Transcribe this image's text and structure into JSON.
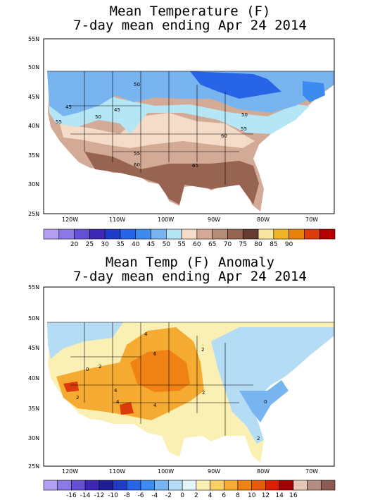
{
  "panels": [
    {
      "title_line1": "Mean Temperature (F)",
      "title_line2": "7-day mean ending Apr 24 2014",
      "lat_labels": [
        "55N",
        "50N",
        "45N",
        "40N",
        "35N",
        "30N",
        "25N"
      ],
      "lon_labels": [
        "120W",
        "110W",
        "100W",
        "90W",
        "80W",
        "70W"
      ],
      "contour_labels": [
        "50",
        "45",
        "45",
        "50",
        "55",
        "50",
        "55",
        "60",
        "55",
        "60",
        "65"
      ],
      "colorbar": {
        "colors": [
          "#b4a0f0",
          "#8c78e6",
          "#6450d2",
          "#3c28b4",
          "#1e3cc8",
          "#2864e6",
          "#3c8cf0",
          "#78b4f0",
          "#b4e6f5",
          "#f5dcc8",
          "#d2aa96",
          "#b48c78",
          "#966450",
          "#643c32",
          "#fae6a0",
          "#f0b428",
          "#e6820a",
          "#dc3c0a",
          "#b40000"
        ],
        "labels": [
          "20",
          "25",
          "30",
          "35",
          "40",
          "45",
          "50",
          "55",
          "60",
          "65",
          "70",
          "75",
          "80",
          "85",
          "90"
        ]
      }
    },
    {
      "title_line1": "Mean Temp (F) Anomaly",
      "title_line2": "7-day mean ending Apr 24 2014",
      "lat_labels": [
        "55N",
        "50N",
        "45N",
        "40N",
        "35N",
        "30N",
        "25N"
      ],
      "lon_labels": [
        "120W",
        "110W",
        "100W",
        "90W",
        "80W",
        "70W"
      ],
      "contour_labels": [
        "4",
        "6",
        "2",
        "2",
        "0",
        "2",
        "4",
        "2",
        "4",
        "4",
        "0",
        "2"
      ],
      "colorbar": {
        "colors": [
          "#b4a0f0",
          "#8c78e6",
          "#6450d2",
          "#3c28b4",
          "#1e1e96",
          "#1e3cc8",
          "#2864e6",
          "#3c8cf0",
          "#78b4f0",
          "#b4dcf5",
          "#e1f5fa",
          "#faf0b4",
          "#fad264",
          "#f5aa32",
          "#f08214",
          "#e65a0a",
          "#dc1e00",
          "#a00000",
          "#e6c8b4",
          "#b48c82",
          "#8c5a50"
        ],
        "labels": [
          "-16",
          "-14",
          "-12",
          "-10",
          "-8",
          "-6",
          "-4",
          "-2",
          "0",
          "2",
          "4",
          "6",
          "8",
          "10",
          "12",
          "14",
          "16"
        ]
      }
    }
  ],
  "legend_colors": {
    "ocean": "#ffffff",
    "cold_deep": "#2864e6",
    "cold_mid": "#78b4f0",
    "cold_light": "#b4e6f5",
    "warm_light": "#f5dcc8",
    "warm_mid": "#d2aa96",
    "warm_dark": "#966450",
    "anom_neutral": "#e1f5fa",
    "anom_pos_light": "#faf0b4",
    "anom_pos_mid": "#f5aa32",
    "anom_pos_strong": "#f08214",
    "anom_pos_max": "#dc3c0a"
  }
}
